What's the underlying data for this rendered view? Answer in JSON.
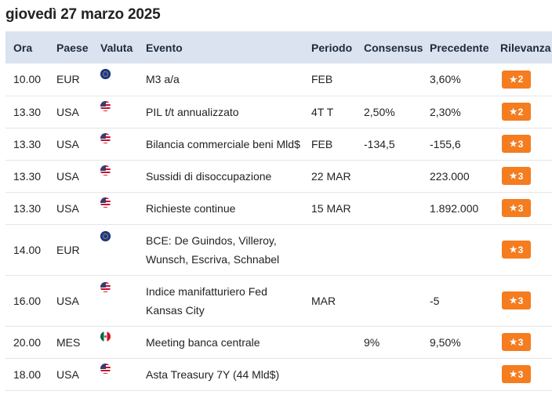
{
  "day_title": "giovedì 27 marzo 2025",
  "columns": {
    "ora": "Ora",
    "paese": "Paese",
    "valuta": "Valuta",
    "evento": "Evento",
    "periodo": "Periodo",
    "consensus": "Consensus",
    "precedente": "Precedente",
    "rilevanza": "Rilevanza"
  },
  "rows": [
    {
      "ora": "10.00",
      "paese": "EUR",
      "flag": "eu-flag-icon",
      "evento": "M3 a/a",
      "periodo": "FEB",
      "consensus": "",
      "precedente": "3,60%",
      "rilevanza": "2"
    },
    {
      "ora": "13.30",
      "paese": "USA",
      "flag": "us-flag-icon",
      "evento": "PIL t/t annualizzato",
      "periodo": "4T T",
      "consensus": "2,50%",
      "precedente": "2,30%",
      "rilevanza": "2"
    },
    {
      "ora": "13.30",
      "paese": "USA",
      "flag": "us-flag-icon",
      "evento": "Bilancia commerciale beni Mld$",
      "periodo": "FEB",
      "consensus": "-134,5",
      "precedente": "-155,6",
      "rilevanza": "3"
    },
    {
      "ora": "13.30",
      "paese": "USA",
      "flag": "us-flag-icon",
      "evento": "Sussidi di disoccupazione",
      "periodo": "22 MAR",
      "consensus": "",
      "precedente": "223.000",
      "rilevanza": "3"
    },
    {
      "ora": "13.30",
      "paese": "USA",
      "flag": "us-flag-icon",
      "evento": "Richieste continue",
      "periodo": "15 MAR",
      "consensus": "",
      "precedente": "1.892.000",
      "rilevanza": "3"
    },
    {
      "ora": "14.00",
      "paese": "EUR",
      "flag": "eu-flag-icon",
      "evento_line1": "BCE: De Guindos, Villeroy,",
      "evento_line2": "Wunsch, Escriva, Schnabel",
      "periodo": "",
      "consensus": "",
      "precedente": "",
      "rilevanza": "3"
    },
    {
      "ora": "16.00",
      "paese": "USA",
      "flag": "us-flag-icon",
      "evento_line1": "Indice manifatturiero Fed",
      "evento_line2": "Kansas City",
      "periodo": "MAR",
      "consensus": "",
      "precedente": "-5",
      "rilevanza": "3"
    },
    {
      "ora": "20.00",
      "paese": "MES",
      "flag": "mx-flag-icon",
      "evento": "Meeting banca centrale",
      "periodo": "",
      "consensus": "9%",
      "precedente": "9,50%",
      "rilevanza": "3"
    },
    {
      "ora": "18.00",
      "paese": "USA",
      "flag": "us-flag-icon",
      "evento": "Asta Treasury 7Y (44 Mld$)",
      "periodo": "",
      "consensus": "",
      "precedente": "",
      "rilevanza": "3"
    }
  ],
  "colors": {
    "header_bg": "#dbe3f0",
    "badge": "#f57c1f"
  }
}
